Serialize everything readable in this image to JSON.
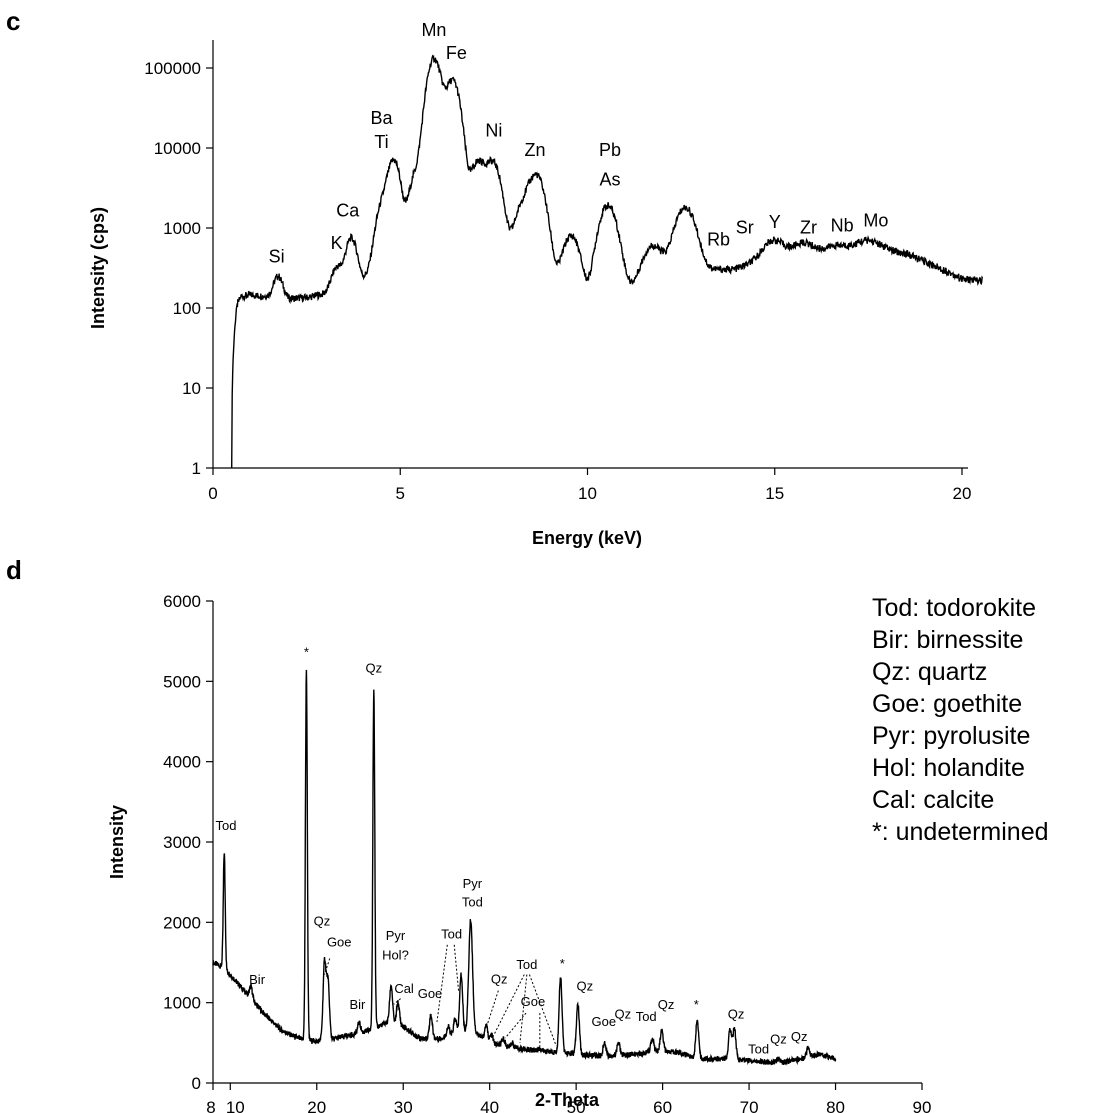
{
  "panels": {
    "c": "c",
    "d": "d"
  },
  "legend": [
    "Tod: todorokite",
    "Bir: birnessite",
    "Qz: quartz",
    "Goe: goethite",
    "Pyr: pyrolusite",
    "Hol: holandite",
    "Cal: calcite",
    "*: undetermined"
  ],
  "chart_data": [
    {
      "type": "line",
      "panel": "c",
      "xlabel": "Energy (keV)",
      "ylabel": "Intensity (cps)",
      "xlim": [
        0,
        20
      ],
      "ylim": [
        1,
        100000
      ],
      "yscale": "log",
      "grid": false,
      "x_ticks": [
        0,
        5,
        10,
        15,
        20
      ],
      "y_ticks": [
        1,
        10,
        100,
        1000,
        10000,
        100000
      ],
      "y_tick_labels": [
        "1",
        "10",
        "100",
        "1000",
        "10000",
        "100000"
      ],
      "x_tick_labels": [
        "0",
        "5",
        "10",
        "15",
        "20"
      ],
      "baseline": [
        [
          0.5,
          1
        ],
        [
          0.55,
          30
        ],
        [
          0.65,
          110
        ],
        [
          0.75,
          140
        ],
        [
          1.0,
          145
        ],
        [
          1.5,
          140
        ],
        [
          2.0,
          130
        ],
        [
          2.5,
          135
        ],
        [
          3.0,
          150
        ],
        [
          3.5,
          160
        ],
        [
          4.0,
          220
        ],
        [
          5.0,
          500
        ],
        [
          6.0,
          700
        ],
        [
          7.0,
          500
        ],
        [
          8.0,
          400
        ],
        [
          9.0,
          200
        ],
        [
          9.5,
          90
        ],
        [
          10.2,
          70
        ],
        [
          11.0,
          150
        ],
        [
          12.0,
          250
        ],
        [
          13.0,
          250
        ],
        [
          14.0,
          300
        ],
        [
          15.0,
          400
        ],
        [
          16.0,
          420
        ],
        [
          17.0,
          500
        ],
        [
          18.0,
          520
        ],
        [
          18.5,
          480
        ],
        [
          19.0,
          380
        ],
        [
          19.5,
          300
        ],
        [
          20.0,
          230
        ],
        [
          20.5,
          220
        ]
      ],
      "peaks": [
        {
          "label": "Si",
          "x": 1.74,
          "y": 250
        },
        {
          "label": "K",
          "x": 3.31,
          "y": 320
        },
        {
          "label": "Ca",
          "x": 3.69,
          "y": 750
        },
        {
          "label": "Ba\nTi",
          "x": 4.51,
          "y": 1800
        },
        {
          "label": "",
          "x": 4.83,
          "y": 7000
        },
        {
          "label": "",
          "x": 5.41,
          "y": 4500
        },
        {
          "label": "Mn",
          "x": 5.9,
          "y": 130000
        },
        {
          "label": "Fe",
          "x": 6.4,
          "y": 70000
        },
        {
          "label": "",
          "x": 7.06,
          "y": 6500
        },
        {
          "label": "Ni",
          "x": 7.48,
          "y": 6500
        },
        {
          "label": "",
          "x": 8.26,
          "y": 1700
        },
        {
          "label": "Zn",
          "x": 8.64,
          "y": 4500
        },
        {
          "label": "",
          "x": 9.57,
          "y": 800
        },
        {
          "label": "Pb\nAs",
          "x": 10.54,
          "y": 1900
        },
        {
          "label": "",
          "x": 11.73,
          "y": 600
        },
        {
          "label": "",
          "x": 12.61,
          "y": 1800
        },
        {
          "label": "Rb",
          "x": 13.39,
          "y": 300
        },
        {
          "label": "Sr",
          "x": 14.16,
          "y": 330
        },
        {
          "label": "Y",
          "x": 14.96,
          "y": 700
        },
        {
          "label": "Zr",
          "x": 15.77,
          "y": 650
        },
        {
          "label": "Nb",
          "x": 16.61,
          "y": 600
        },
        {
          "label": "Mo",
          "x": 17.47,
          "y": 700
        }
      ],
      "peak_labels": [
        {
          "text": "Si",
          "x": 1.7,
          "y": 370
        },
        {
          "text": "K",
          "x": 3.3,
          "y": 550
        },
        {
          "text": "Ca",
          "x": 3.6,
          "y": 1400
        },
        {
          "text": "Ba",
          "x": 4.5,
          "y": 20000
        },
        {
          "text": "Ti",
          "x": 4.5,
          "y": 10000
        },
        {
          "text": "Mn",
          "x": 5.9,
          "y": 250000
        },
        {
          "text": "Fe",
          "x": 6.5,
          "y": 130000
        },
        {
          "text": "Ni",
          "x": 7.5,
          "y": 14000
        },
        {
          "text": "Zn",
          "x": 8.6,
          "y": 8000
        },
        {
          "text": "Pb",
          "x": 10.6,
          "y": 8000
        },
        {
          "text": "As",
          "x": 10.6,
          "y": 3400
        },
        {
          "text": "Rb",
          "x": 13.5,
          "y": 600
        },
        {
          "text": "Sr",
          "x": 14.2,
          "y": 850
        },
        {
          "text": "Y",
          "x": 15.0,
          "y": 1000
        },
        {
          "text": "Zr",
          "x": 15.9,
          "y": 850
        },
        {
          "text": "Nb",
          "x": 16.8,
          "y": 900
        },
        {
          "text": "Mo",
          "x": 17.7,
          "y": 1050
        }
      ]
    },
    {
      "type": "line",
      "panel": "d",
      "xlabel": "2-Theta",
      "ylabel": "Intensity",
      "xlim": [
        8,
        90
      ],
      "ylim": [
        0,
        6000
      ],
      "grid": false,
      "x_ticks": [
        8,
        10,
        20,
        30,
        40,
        50,
        60,
        70,
        80,
        90
      ],
      "x_tick_labels": [
        "8",
        "10",
        "20",
        "30",
        "40",
        "50",
        "60",
        "70",
        "80",
        "90"
      ],
      "y_ticks": [
        0,
        1000,
        2000,
        3000,
        4000,
        5000,
        6000
      ],
      "y_tick_labels": [
        "0",
        "1000",
        "2000",
        "3000",
        "4000",
        "5000",
        "6000"
      ],
      "baseline": [
        [
          8.0,
          1500
        ],
        [
          9.0,
          1450
        ],
        [
          10.0,
          1350
        ],
        [
          12.0,
          1100
        ],
        [
          14.0,
          850
        ],
        [
          16.0,
          650
        ],
        [
          18.0,
          550
        ],
        [
          20.0,
          520
        ],
        [
          22.0,
          550
        ],
        [
          24.0,
          600
        ],
        [
          26.0,
          650
        ],
        [
          28.0,
          750
        ],
        [
          30.0,
          700
        ],
        [
          32.0,
          550
        ],
        [
          34.0,
          550
        ],
        [
          36.0,
          600
        ],
        [
          38.0,
          650
        ],
        [
          40.0,
          500
        ],
        [
          42.0,
          450
        ],
        [
          44.0,
          420
        ],
        [
          46.0,
          400
        ],
        [
          48.0,
          380
        ],
        [
          50.0,
          360
        ],
        [
          52.0,
          340
        ],
        [
          54.0,
          340
        ],
        [
          56.0,
          350
        ],
        [
          58.0,
          380
        ],
        [
          60.0,
          400
        ],
        [
          62.0,
          380
        ],
        [
          64.0,
          300
        ],
        [
          66.0,
          300
        ],
        [
          68.0,
          300
        ],
        [
          70.0,
          280
        ],
        [
          72.0,
          260
        ],
        [
          74.0,
          260
        ],
        [
          76.0,
          300
        ],
        [
          78.0,
          360
        ],
        [
          80.0,
          300
        ]
      ],
      "peaks": [
        {
          "x": 9.3,
          "y": 2870
        },
        {
          "x": 12.4,
          "y": 1200
        },
        {
          "x": 18.8,
          "y": 5150
        },
        {
          "x": 20.9,
          "y": 1500
        },
        {
          "x": 21.3,
          "y": 1250
        },
        {
          "x": 24.9,
          "y": 750
        },
        {
          "x": 26.6,
          "y": 4930
        },
        {
          "x": 28.6,
          "y": 1220
        },
        {
          "x": 29.4,
          "y": 1000
        },
        {
          "x": 33.2,
          "y": 850
        },
        {
          "x": 35.2,
          "y": 700
        },
        {
          "x": 36.0,
          "y": 800
        },
        {
          "x": 36.7,
          "y": 1350
        },
        {
          "x": 37.8,
          "y": 2030
        },
        {
          "x": 39.6,
          "y": 720
        },
        {
          "x": 40.2,
          "y": 600
        },
        {
          "x": 41.6,
          "y": 550
        },
        {
          "x": 42.6,
          "y": 500
        },
        {
          "x": 45.8,
          "y": 430
        },
        {
          "x": 48.2,
          "y": 1320
        },
        {
          "x": 50.2,
          "y": 980
        },
        {
          "x": 53.3,
          "y": 500
        },
        {
          "x": 54.9,
          "y": 500
        },
        {
          "x": 58.8,
          "y": 550
        },
        {
          "x": 59.9,
          "y": 650
        },
        {
          "x": 64.0,
          "y": 780
        },
        {
          "x": 67.8,
          "y": 680
        },
        {
          "x": 68.3,
          "y": 680
        },
        {
          "x": 73.4,
          "y": 300
        },
        {
          "x": 76.8,
          "y": 440
        }
      ],
      "annotations": [
        {
          "text": "Tod",
          "x": 9.5,
          "y": 3150
        },
        {
          "text": "Bir",
          "x": 13.1,
          "y": 1230
        },
        {
          "text": "*",
          "x": 18.8,
          "y": 5310
        },
        {
          "text": "Qz",
          "x": 26.6,
          "y": 5110
        },
        {
          "text": "Qz",
          "x": 20.6,
          "y": 1960
        },
        {
          "text": "Goe",
          "x": 22.6,
          "y": 1700
        },
        {
          "text": "Bir",
          "x": 24.7,
          "y": 920
        },
        {
          "text": "Pyr",
          "x": 29.1,
          "y": 1780
        },
        {
          "text": "Hol?",
          "x": 29.1,
          "y": 1540
        },
        {
          "text": "Cal",
          "x": 30.1,
          "y": 1120
        },
        {
          "text": "Goe",
          "x": 33.1,
          "y": 1060
        },
        {
          "text": "Tod",
          "x": 35.6,
          "y": 1800
        },
        {
          "text": "Pyr",
          "x": 38.0,
          "y": 2430
        },
        {
          "text": "Tod",
          "x": 38.0,
          "y": 2200
        },
        {
          "text": "Qz",
          "x": 41.1,
          "y": 1240
        },
        {
          "text": "Tod",
          "x": 44.3,
          "y": 1420
        },
        {
          "text": "Goe",
          "x": 45.0,
          "y": 960
        },
        {
          "text": "*",
          "x": 48.4,
          "y": 1430
        },
        {
          "text": "Qz",
          "x": 51.0,
          "y": 1150
        },
        {
          "text": "Goe",
          "x": 53.2,
          "y": 710
        },
        {
          "text": "Qz",
          "x": 55.4,
          "y": 800
        },
        {
          "text": "Tod",
          "x": 58.1,
          "y": 770
        },
        {
          "text": "Qz",
          "x": 60.4,
          "y": 920
        },
        {
          "text": "*",
          "x": 63.9,
          "y": 920
        },
        {
          "text": "Qz",
          "x": 68.5,
          "y": 800
        },
        {
          "text": "Tod",
          "x": 71.1,
          "y": 370
        },
        {
          "text": "Qz",
          "x": 73.4,
          "y": 490
        },
        {
          "text": "Qz",
          "x": 75.8,
          "y": 520
        }
      ],
      "dotted_leaders": [
        {
          "x1": 21.5,
          "y1": 1550,
          "x2": 20.9,
          "y2": 1350
        },
        {
          "x1": 29.7,
          "y1": 1050,
          "x2": 28.9,
          "y2": 980
        },
        {
          "x1": 35.1,
          "y1": 1720,
          "x2": 33.9,
          "y2": 760
        },
        {
          "x1": 35.9,
          "y1": 1720,
          "x2": 36.4,
          "y2": 1150
        },
        {
          "x1": 41.0,
          "y1": 1150,
          "x2": 39.7,
          "y2": 720
        },
        {
          "x1": 44.0,
          "y1": 1350,
          "x2": 40.4,
          "y2": 580
        },
        {
          "x1": 44.3,
          "y1": 1350,
          "x2": 43.5,
          "y2": 500
        },
        {
          "x1": 44.6,
          "y1": 1350,
          "x2": 47.7,
          "y2": 460
        },
        {
          "x1": 44.2,
          "y1": 870,
          "x2": 41.8,
          "y2": 560
        },
        {
          "x1": 45.8,
          "y1": 870,
          "x2": 45.8,
          "y2": 430
        }
      ]
    }
  ]
}
